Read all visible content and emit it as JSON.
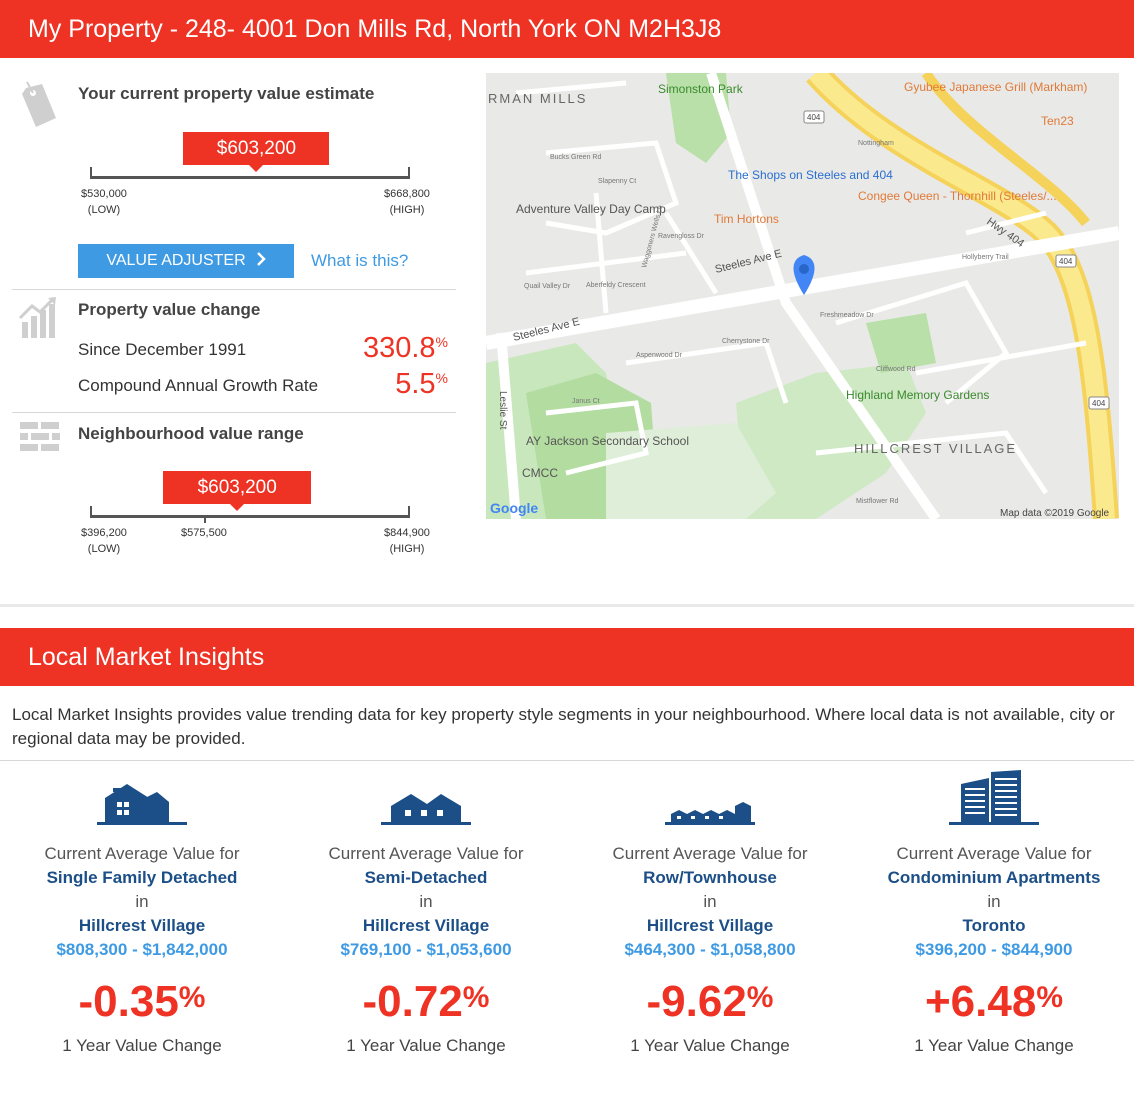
{
  "property": {
    "header_title": "My Property - 248- 4001 Don Mills Rd, North York ON M2H3J8",
    "estimate": {
      "title": "Your current property value estimate",
      "value": "$603,200",
      "value_fraction": 0.52,
      "low": "$530,000",
      "low_tag": "(LOW)",
      "high": "$668,800",
      "high_tag": "(HIGH)"
    },
    "value_adjuster_label": "VALUE ADJUSTER",
    "what_is_this_label": "What is this?",
    "change": {
      "title": "Property value change",
      "since_label": "Since December 1991",
      "since_value": "330.8",
      "since_unit": "%",
      "cagr_label": "Compound Annual Growth Rate",
      "cagr_value": "5.5",
      "cagr_unit": "%"
    },
    "neighbourhood": {
      "title": "Neighbourhood value range",
      "value": "$603,200",
      "value_fraction": 0.46,
      "low": "$396,200",
      "low_tag": "(LOW)",
      "mid": "$575,500",
      "high": "$844,900",
      "high_tag": "(HIGH)"
    }
  },
  "map": {
    "labels": {
      "rman_mills": "RMAN MILLS",
      "simonston_park": "Simonston Park",
      "gyubee": "Gyubee Japanese Grill (Markham)",
      "ten23": "Ten23",
      "bucks_green": "Bucks Green Rd",
      "slapenny": "Slapenny Ct",
      "nottingham": "Nottingham",
      "shops": "The Shops on Steeles and 404",
      "congee": "Congee Queen - Thornhill (Steeles/...",
      "adventure": "Adventure Valley Day Camp",
      "tim": "Tim Hortons",
      "hwy404": "Hwy 404",
      "steeles_ave": "Steeles Ave E",
      "steeles_ave2": "Steeles Ave E",
      "highland": "Highland Memory Gardens",
      "ay_jackson": "AY Jackson Secondary School",
      "cmcc": "CMCC",
      "hillcrest": "HILLCREST VILLAGE",
      "leslie": "Leslie St",
      "google": "Google",
      "copyright": "Map data ©2019 Google",
      "shield": "404",
      "aberfeldy": "Aberfeldy Crescent",
      "ravengloss": "Ravengloss Dr",
      "waggoners": "Waggoners Wells Ln",
      "quail": "Quail Valley Dr",
      "aspenwood": "Aspenwood Dr",
      "cherrystone": "Cherrystone Dr",
      "freshmeadow": "Freshmeadow Dr",
      "cliffwood": "Cliffwood Rd",
      "hollyberry": "Hollyberry Trail",
      "janus": "Janus Ct",
      "mistflower": "Mistflower Rd"
    }
  },
  "insights": {
    "header_title": "Local Market Insights",
    "intro": "Local Market Insights provides value trending data for key property style segments in your neighbourhood. Where local data is not available, city or regional data may be provided.",
    "columns": [
      {
        "icon": "single-family-house-icon",
        "label": "Current Average Value for",
        "type": "Single Family Detached",
        "in": "in",
        "area": "Hillcrest Village",
        "range": "$808,300 - $1,842,000",
        "change": "-0.35",
        "unit": "%",
        "caption": "1 Year Value Change"
      },
      {
        "icon": "semi-detached-house-icon",
        "label": "Current Average Value for",
        "type": "Semi-Detached",
        "in": "in",
        "area": "Hillcrest Village",
        "range": "$769,100 - $1,053,600",
        "change": "-0.72",
        "unit": "%",
        "caption": "1 Year Value Change"
      },
      {
        "icon": "townhouse-icon",
        "label": "Current Average Value for",
        "type": "Row/Townhouse",
        "in": "in",
        "area": "Hillcrest Village",
        "range": "$464,300 - $1,058,800",
        "change": "-9.62",
        "unit": "%",
        "caption": "1 Year Value Change"
      },
      {
        "icon": "condo-building-icon",
        "label": "Current Average Value for",
        "type": "Condominium Apartments",
        "in": "in",
        "area": "Toronto",
        "range": "$396,200 - $844,900",
        "change": "+6.48",
        "unit": "%",
        "caption": "1 Year Value Change"
      }
    ]
  },
  "colors": {
    "accent_red": "#ee3224",
    "link_blue": "#3e9ae3",
    "navy": "#1c4f87"
  }
}
